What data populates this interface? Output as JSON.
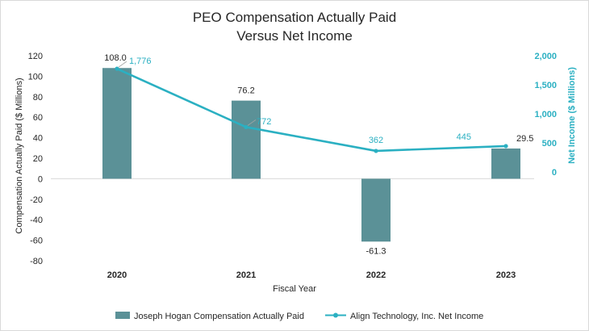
{
  "chart_data": {
    "type": "bar+line",
    "title_lines": [
      "PEO Compensation Actually Paid",
      "Versus Net Income"
    ],
    "categories": [
      "2020",
      "2021",
      "2022",
      "2023"
    ],
    "xlabel": "Fiscal Year",
    "ylabel_left": "Compensation Actually Paid ($ Millions)",
    "ylabel_right": "Net Income ($ Millions)",
    "ylim_left": [
      -80,
      120
    ],
    "yticks_left": [
      "120",
      "100",
      "80",
      "60",
      "40",
      "20",
      "0",
      "-20",
      "-40",
      "-60",
      "-80"
    ],
    "ylim_right": [
      0,
      2000
    ],
    "yticks_right": [
      "2,000",
      "1,500",
      "1,000",
      "500",
      "0"
    ],
    "series": [
      {
        "name": "Joseph Hogan Compensation Actually Paid",
        "type": "bar",
        "axis": "left",
        "color": "#5b9197",
        "values": [
          108.0,
          76.2,
          -61.3,
          29.5
        ],
        "labels": [
          "108.0",
          "76.2",
          "-61.3",
          "29.5"
        ]
      },
      {
        "name": "Align Technology, Inc. Net Income",
        "type": "line",
        "axis": "right",
        "color": "#2bb0c2",
        "values": [
          1776,
          772,
          362,
          445
        ],
        "labels": [
          "1,776",
          "772",
          "362",
          "445"
        ]
      }
    ],
    "legend_position": "bottom"
  }
}
